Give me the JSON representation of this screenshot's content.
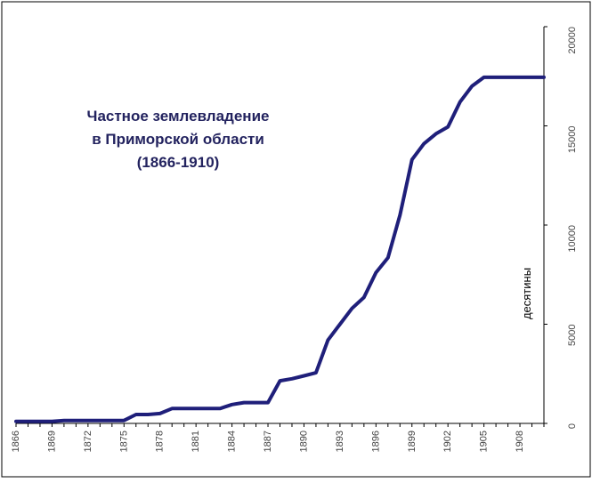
{
  "chart_data": {
    "type": "line",
    "title_lines": [
      "Частное землевладение",
      "в Приморской области",
      "(1866-1910)"
    ],
    "ylabel": "десятины",
    "xlim": [
      1866,
      1910
    ],
    "ylim": [
      0,
      20000
    ],
    "y_ticks": [
      0,
      5000,
      10000,
      15000,
      20000
    ],
    "x_ticks": [
      1866,
      1869,
      1872,
      1875,
      1878,
      1881,
      1884,
      1887,
      1890,
      1893,
      1896,
      1899,
      1902,
      1905,
      1908
    ],
    "y_axis_side": "right",
    "grid": false,
    "legend": "none",
    "series": [
      {
        "color": "#1f1f7a",
        "x": [
          1866,
          1867,
          1868,
          1869,
          1870,
          1871,
          1872,
          1873,
          1874,
          1875,
          1876,
          1877,
          1878,
          1879,
          1880,
          1881,
          1882,
          1883,
          1884,
          1885,
          1886,
          1887,
          1888,
          1889,
          1890,
          1891,
          1892,
          1893,
          1894,
          1895,
          1896,
          1897,
          1898,
          1899,
          1900,
          1901,
          1902,
          1903,
          1904,
          1905,
          1906,
          1907,
          1908,
          1909,
          1910
        ],
        "y": [
          100,
          100,
          100,
          100,
          150,
          150,
          150,
          150,
          150,
          150,
          450,
          450,
          500,
          750,
          750,
          750,
          750,
          750,
          950,
          1050,
          1050,
          1050,
          2150,
          2250,
          2400,
          2550,
          4200,
          5000,
          5800,
          6350,
          7600,
          8350,
          10500,
          13300,
          14100,
          14600,
          14950,
          16200,
          17000,
          17450,
          17450,
          17450,
          17450,
          17450,
          17450
        ]
      }
    ]
  }
}
